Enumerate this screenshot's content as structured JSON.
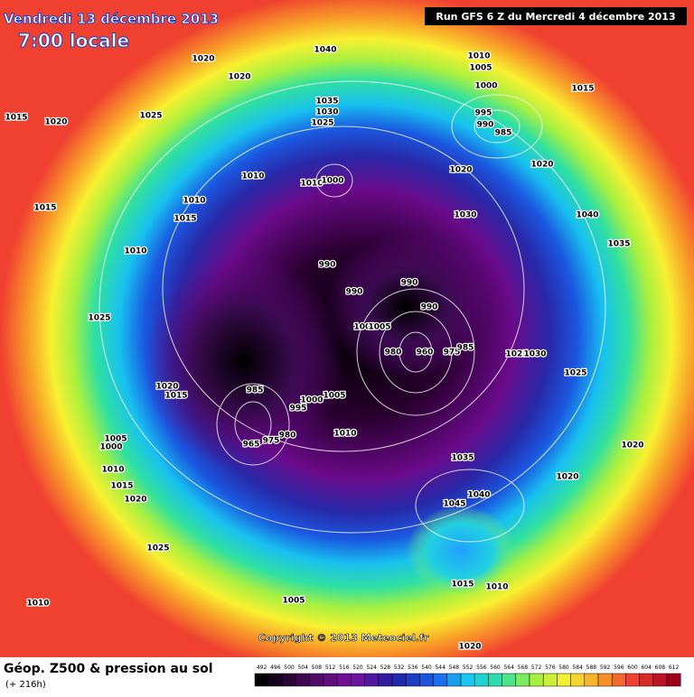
{
  "header": {
    "date": "Vendredi 13 décembre 2013",
    "time": "7:00 locale",
    "run": "Run GFS 6 Z du Mercredi 4 décembre 2013"
  },
  "copyright": "Copyright © 2013 Meteociel.fr",
  "footer": {
    "title": "Géop. Z500 & pression au sol",
    "subtitle": "(+ 216h)"
  },
  "legend": [
    492,
    496,
    500,
    504,
    508,
    512,
    516,
    520,
    524,
    528,
    532,
    536,
    540,
    544,
    548,
    552,
    556,
    560,
    564,
    568,
    572,
    576,
    580,
    584,
    588,
    592,
    596,
    600,
    604,
    608,
    612
  ],
  "labels": [
    1040,
    1020,
    1020,
    1015,
    1020,
    1025,
    1035,
    1030,
    1025,
    1010,
    1005,
    1000,
    1015,
    995,
    990,
    985,
    1020,
    1020,
    1010,
    1010,
    1000,
    1010,
    1015,
    1015,
    1030,
    1040,
    1035,
    1010,
    990,
    990,
    990,
    990,
    1025,
    1000,
    1005,
    980,
    960,
    975,
    985,
    1025,
    1030,
    1025,
    985,
    1020,
    1015,
    1000,
    1005,
    995,
    980,
    975,
    965,
    1010,
    1005,
    1000,
    1010,
    1035,
    1020,
    1020,
    1015,
    1020,
    1040,
    1045,
    1025,
    1010,
    1005,
    1015,
    1010,
    1020
  ]
}
